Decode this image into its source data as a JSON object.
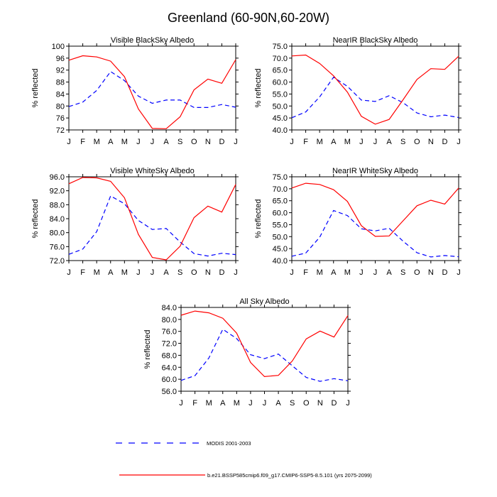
{
  "figure": {
    "title": "Greenland (60-90N,60-20W)"
  },
  "legend": {
    "modis_label": "MODIS 2001-2003",
    "model_label": "b.e21.BSSP585cmip6.f09_g17.CMIP6-SSP5-8.5.101 (yrs 2075-2099)"
  },
  "colors": {
    "modis": "#0000ff",
    "model": "#ff0000"
  },
  "chart_data": [
    {
      "type": "line",
      "title": "Visible BlackSky Albedo",
      "ylabel": "% reflected",
      "categories": [
        "J",
        "F",
        "M",
        "A",
        "M",
        "J",
        "J",
        "A",
        "S",
        "O",
        "N",
        "D",
        "J"
      ],
      "ylim": [
        72,
        100
      ],
      "yticks": [
        "72",
        "76",
        "80",
        "84",
        "88",
        "92",
        "96",
        "100"
      ],
      "series": [
        {
          "name": "MODIS 2001-2003",
          "values": [
            79.8,
            81.3,
            85.2,
            91.5,
            88.5,
            83.3,
            80.9,
            82.0,
            82.0,
            79.5,
            79.5,
            80.5,
            79.6
          ]
        },
        {
          "name": "b.e21.BSSP585cmip6.f09_g17.CMIP6-SSP5-8.5.101 (yrs 2075-2099)",
          "values": [
            95.3,
            96.8,
            96.4,
            95.0,
            89.8,
            79.0,
            72.5,
            72.4,
            76.4,
            85.4,
            89.0,
            87.6,
            95.5
          ]
        }
      ]
    },
    {
      "type": "line",
      "title": "NearIR BlackSky Albedo",
      "ylabel": "% reflected",
      "categories": [
        "J",
        "F",
        "M",
        "A",
        "M",
        "J",
        "J",
        "A",
        "S",
        "O",
        "N",
        "D",
        "J"
      ],
      "ylim": [
        40,
        75
      ],
      "yticks": [
        "40.0",
        "45.0",
        "50.0",
        "55.0",
        "60.0",
        "65.0",
        "70.0",
        "75.0"
      ],
      "series": [
        {
          "name": "MODIS 2001-2003",
          "values": [
            45.1,
            47.5,
            53.8,
            62.0,
            58.2,
            52.5,
            51.9,
            54.3,
            51.4,
            47.1,
            45.5,
            46.2,
            45.2
          ]
        },
        {
          "name": "b.e21.BSSP585cmip6.f09_g17.CMIP6-SSP5-8.5.101 (yrs 2075-2099)",
          "values": [
            70.9,
            71.3,
            67.8,
            62.6,
            55.8,
            45.7,
            42.4,
            44.4,
            52.6,
            61.1,
            65.6,
            65.3,
            70.8
          ]
        }
      ]
    },
    {
      "type": "line",
      "title": "Visible WhiteSky Albedo",
      "ylabel": "% reflected",
      "categories": [
        "J",
        "F",
        "M",
        "A",
        "M",
        "J",
        "J",
        "A",
        "S",
        "O",
        "N",
        "D",
        "J"
      ],
      "ylim": [
        72,
        96
      ],
      "yticks": [
        "72.0",
        "76.0",
        "80.0",
        "84.0",
        "88.0",
        "92.0",
        "96.0"
      ],
      "series": [
        {
          "name": "MODIS 2001-2003",
          "values": [
            73.8,
            75.3,
            80.3,
            90.5,
            88.3,
            83.5,
            80.9,
            81.2,
            77.3,
            74.0,
            73.3,
            74.1,
            73.7
          ]
        },
        {
          "name": "b.e21.BSSP585cmip6.f09_g17.CMIP6-SSP5-8.5.101 (yrs 2075-2099)",
          "values": [
            94.0,
            95.8,
            95.7,
            94.7,
            90.0,
            79.5,
            72.9,
            72.2,
            76.1,
            84.3,
            87.6,
            85.9,
            93.8
          ]
        }
      ]
    },
    {
      "type": "line",
      "title": "NearIR WhiteSky Albedo",
      "ylabel": "% reflected",
      "categories": [
        "J",
        "F",
        "M",
        "A",
        "M",
        "J",
        "J",
        "A",
        "S",
        "O",
        "N",
        "D",
        "J"
      ],
      "ylim": [
        40,
        75
      ],
      "yticks": [
        "40.0",
        "45.0",
        "50.0",
        "55.0",
        "60.0",
        "65.0",
        "70.0",
        "75.0"
      ],
      "series": [
        {
          "name": "MODIS 2001-2003",
          "values": [
            41.8,
            43.1,
            49.7,
            60.9,
            58.8,
            53.3,
            52.4,
            53.5,
            48.1,
            43.3,
            41.5,
            42.1,
            41.6
          ]
        },
        {
          "name": "b.e21.BSSP585cmip6.f09_g17.CMIP6-SSP5-8.5.101 (yrs 2075-2099)",
          "values": [
            70.3,
            72.3,
            71.8,
            69.6,
            64.7,
            54.6,
            50.1,
            50.3,
            56.6,
            62.9,
            65.2,
            63.6,
            70.3
          ]
        }
      ]
    },
    {
      "type": "line",
      "title": "All Sky Albedo",
      "ylabel": "% reflected",
      "categories": [
        "J",
        "F",
        "M",
        "A",
        "M",
        "J",
        "J",
        "A",
        "S",
        "O",
        "N",
        "D",
        "J"
      ],
      "ylim": [
        56,
        84
      ],
      "yticks": [
        "56.0",
        "60.0",
        "64.0",
        "68.0",
        "72.0",
        "76.0",
        "80.0",
        "84.0"
      ],
      "series": [
        {
          "name": "MODIS 2001-2003",
          "values": [
            59.6,
            61.2,
            67.1,
            76.7,
            73.6,
            68.2,
            66.9,
            68.4,
            64.5,
            60.6,
            59.3,
            60.2,
            59.5
          ]
        },
        {
          "name": "b.e21.BSSP585cmip6.f09_g17.CMIP6-SSP5-8.5.101 (yrs 2075-2099)",
          "values": [
            81.4,
            82.8,
            82.2,
            80.4,
            75.4,
            65.6,
            60.9,
            61.3,
            66.1,
            73.5,
            76.1,
            74.1,
            81.3
          ]
        }
      ]
    }
  ]
}
